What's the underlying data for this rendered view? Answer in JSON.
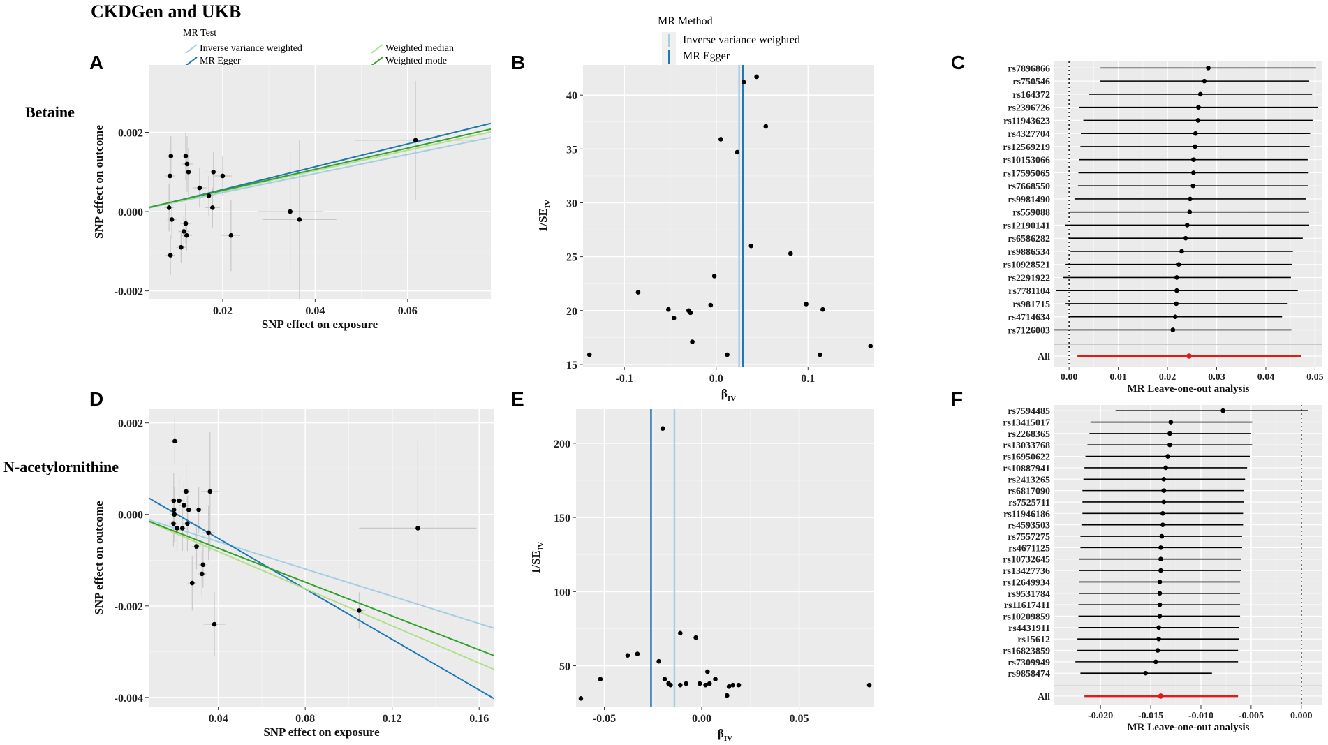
{
  "figure": {
    "title": "CKDGen and UKB",
    "row_labels": [
      "Betaine",
      "N-acetylornithine"
    ],
    "panel_letters": [
      "A",
      "B",
      "C",
      "D",
      "E",
      "F"
    ]
  },
  "legend_a": {
    "title": "MR Test",
    "items": [
      {
        "label": "Inverse variance weighted",
        "color": "#a6cee3"
      },
      {
        "label": "MR Egger",
        "color": "#1f78b4"
      },
      {
        "label": "Weighted median",
        "color": "#b2df8a"
      },
      {
        "label": "Weighted mode",
        "color": "#33a02c"
      }
    ]
  },
  "legend_b": {
    "title": "MR Method",
    "items": [
      {
        "label": "Inverse variance weighted",
        "color": "#a6cee3"
      },
      {
        "label": "MR Egger",
        "color": "#1f78b4"
      }
    ]
  },
  "chart_data": [
    {
      "id": "A",
      "type": "scatter",
      "xlabel": "SNP effect on exposure",
      "ylabel": "SNP effect on outcome",
      "xlim": [
        0.004,
        0.078
      ],
      "ylim": [
        -0.0022,
        0.0037
      ],
      "xticks": [
        0.02,
        0.04,
        0.06
      ],
      "xtick_labels": [
        "0.02",
        "0.04",
        "0.06"
      ],
      "yticks": [
        -0.002,
        0.0,
        0.002
      ],
      "ytick_labels": [
        "-0.002",
        "0.000",
        "0.002"
      ],
      "points": [
        {
          "x": 0.0086,
          "y": 0.0009,
          "sx": 0.001,
          "sy": 0.0007
        },
        {
          "x": 0.0088,
          "y": 0.0014,
          "sx": 0.001,
          "sy": 0.0005
        },
        {
          "x": 0.0084,
          "y": 0.0001,
          "sx": 0.001,
          "sy": 0.0006
        },
        {
          "x": 0.009,
          "y": -0.0002,
          "sx": 0.001,
          "sy": 0.0005
        },
        {
          "x": 0.0087,
          "y": -0.0011,
          "sx": 0.001,
          "sy": 0.0005
        },
        {
          "x": 0.011,
          "y": -0.0009,
          "sx": 0.001,
          "sy": 0.0004
        },
        {
          "x": 0.012,
          "y": 0.0014,
          "sx": 0.0012,
          "sy": 0.0006
        },
        {
          "x": 0.0123,
          "y": 0.0012,
          "sx": 0.0012,
          "sy": 0.0007
        },
        {
          "x": 0.0126,
          "y": 0.001,
          "sx": 0.0012,
          "sy": 0.0006
        },
        {
          "x": 0.012,
          "y": -0.0003,
          "sx": 0.0012,
          "sy": 0.0005
        },
        {
          "x": 0.0116,
          "y": -0.0005,
          "sx": 0.0012,
          "sy": 0.0004
        },
        {
          "x": 0.0122,
          "y": -0.0006,
          "sx": 0.0012,
          "sy": 0.0004
        },
        {
          "x": 0.015,
          "y": 0.0006,
          "sx": 0.0015,
          "sy": 0.0005
        },
        {
          "x": 0.017,
          "y": 0.0004,
          "sx": 0.0015,
          "sy": 0.0005
        },
        {
          "x": 0.018,
          "y": 0.001,
          "sx": 0.0018,
          "sy": 0.0005
        },
        {
          "x": 0.0178,
          "y": 0.0001,
          "sx": 0.0016,
          "sy": 0.0005
        },
        {
          "x": 0.02,
          "y": 0.0009,
          "sx": 0.002,
          "sy": 0.0005
        },
        {
          "x": 0.0218,
          "y": -0.0006,
          "sx": 0.002,
          "sy": 0.0009
        },
        {
          "x": 0.0346,
          "y": 0.0,
          "sx": 0.007,
          "sy": 0.0015
        },
        {
          "x": 0.0366,
          "y": -0.0002,
          "sx": 0.008,
          "sy": 0.002
        },
        {
          "x": 0.0617,
          "y": 0.0018,
          "sx": 0.013,
          "sy": 0.0015
        }
      ],
      "lines": [
        {
          "method": "Inverse variance weighted",
          "slope": 0.024,
          "intercept": 0.0
        },
        {
          "method": "MR Egger",
          "slope": 0.0288,
          "intercept": -2e-05
        },
        {
          "method": "Weighted median",
          "slope": 0.0258,
          "intercept": 0.0
        },
        {
          "method": "Weighted mode",
          "slope": 0.0267,
          "intercept": 0.0
        }
      ]
    },
    {
      "id": "B",
      "type": "scatter",
      "xlabel": "β",
      "xlabel_sub": "IV",
      "ylabel": "1/SE",
      "ylabel_sub": "IV",
      "xlim": [
        -0.145,
        0.172
      ],
      "ylim": [
        14.8,
        42.8
      ],
      "xticks": [
        -0.1,
        0.0,
        0.1
      ],
      "xtick_labels": [
        "-0.1",
        "0.0",
        "0.1"
      ],
      "yticks": [
        15,
        20,
        25,
        30,
        35,
        40
      ],
      "ytick_labels": [
        "15",
        "20",
        "25",
        "30",
        "35",
        "40"
      ],
      "points": [
        {
          "x": -0.138,
          "y": 15.9
        },
        {
          "x": -0.085,
          "y": 21.7
        },
        {
          "x": -0.052,
          "y": 20.1
        },
        {
          "x": -0.046,
          "y": 19.3
        },
        {
          "x": -0.03,
          "y": 20.0
        },
        {
          "x": -0.028,
          "y": 19.8
        },
        {
          "x": -0.026,
          "y": 17.1
        },
        {
          "x": -0.006,
          "y": 20.5
        },
        {
          "x": -0.002,
          "y": 23.2
        },
        {
          "x": 0.005,
          "y": 35.9
        },
        {
          "x": 0.012,
          "y": 15.9
        },
        {
          "x": 0.023,
          "y": 34.7
        },
        {
          "x": 0.03,
          "y": 41.2
        },
        {
          "x": 0.038,
          "y": 26.0
        },
        {
          "x": 0.044,
          "y": 41.7
        },
        {
          "x": 0.054,
          "y": 37.1
        },
        {
          "x": 0.081,
          "y": 25.3
        },
        {
          "x": 0.098,
          "y": 20.6
        },
        {
          "x": 0.113,
          "y": 15.9
        },
        {
          "x": 0.116,
          "y": 20.1
        },
        {
          "x": 0.168,
          "y": 16.7
        }
      ],
      "vlines": [
        {
          "method": "Inverse variance weighted",
          "x": 0.025
        },
        {
          "method": "MR Egger",
          "x": 0.029
        }
      ]
    },
    {
      "id": "C",
      "type": "forest",
      "xlabel": "MR Leave-one-out analysis",
      "xlim": [
        -0.003,
        0.0515
      ],
      "xticks": [
        0.0,
        0.01,
        0.02,
        0.03,
        0.04,
        0.05
      ],
      "xtick_labels": [
        "0.00",
        "0.01",
        "0.02",
        "0.03",
        "0.04",
        "0.05"
      ],
      "ref_line": 0.0,
      "rows": [
        {
          "snp": "rs7896866",
          "est": 0.0283,
          "lo": 0.0064,
          "hi": 0.0502
        },
        {
          "snp": "rs750546",
          "est": 0.0275,
          "lo": 0.0063,
          "hi": 0.0488
        },
        {
          "snp": "rs164372",
          "est": 0.0267,
          "lo": 0.004,
          "hi": 0.0494
        },
        {
          "snp": "rs2396726",
          "est": 0.0263,
          "lo": 0.002,
          "hi": 0.0506
        },
        {
          "snp": "rs11943623",
          "est": 0.0262,
          "lo": 0.0029,
          "hi": 0.0495
        },
        {
          "snp": "rs4327704",
          "est": 0.0257,
          "lo": 0.0024,
          "hi": 0.049
        },
        {
          "snp": "rs12569219",
          "est": 0.0256,
          "lo": 0.0023,
          "hi": 0.0489
        },
        {
          "snp": "rs10153066",
          "est": 0.0253,
          "lo": 0.0021,
          "hi": 0.0485
        },
        {
          "snp": "rs17595065",
          "est": 0.0253,
          "lo": 0.0019,
          "hi": 0.0487
        },
        {
          "snp": "rs7668550",
          "est": 0.0252,
          "lo": 0.0018,
          "hi": 0.0486
        },
        {
          "snp": "rs9981490",
          "est": 0.0246,
          "lo": 0.0011,
          "hi": 0.0481
        },
        {
          "snp": "rs559088",
          "est": 0.0245,
          "lo": 0.0002,
          "hi": 0.0488
        },
        {
          "snp": "rs12190141",
          "est": 0.024,
          "lo": -0.0008,
          "hi": 0.0488
        },
        {
          "snp": "rs6586282",
          "est": 0.0237,
          "lo": -0.0001,
          "hi": 0.0475
        },
        {
          "snp": "rs9886534",
          "est": 0.0229,
          "lo": 0.0003,
          "hi": 0.0455
        },
        {
          "snp": "rs10928521",
          "est": 0.0223,
          "lo": -0.0007,
          "hi": 0.0453
        },
        {
          "snp": "rs2291922",
          "est": 0.0219,
          "lo": -0.0013,
          "hi": 0.0451
        },
        {
          "snp": "rs7781104",
          "est": 0.0219,
          "lo": -0.0027,
          "hi": 0.0465
        },
        {
          "snp": "rs981715",
          "est": 0.0218,
          "lo": -0.0007,
          "hi": 0.0443
        },
        {
          "snp": "rs4714634",
          "est": 0.0216,
          "lo": -0.0001,
          "hi": 0.0433
        },
        {
          "snp": "rs7126003",
          "est": 0.0211,
          "lo": -0.003,
          "hi": 0.0452
        }
      ],
      "all": {
        "snp": "All",
        "est": 0.0244,
        "lo": 0.0017,
        "hi": 0.0471
      }
    },
    {
      "id": "D",
      "type": "scatter",
      "xlabel": "SNP effect on exposure",
      "ylabel": "SNP effect on outcome",
      "xlim": [
        0.008,
        0.167
      ],
      "ylim": [
        -0.0042,
        0.0023
      ],
      "xticks": [
        0.04,
        0.08,
        0.12,
        0.16
      ],
      "xtick_labels": [
        "0.04",
        "0.08",
        "0.12",
        "0.16"
      ],
      "yticks": [
        -0.004,
        -0.002,
        0.0,
        0.002
      ],
      "ytick_labels": [
        "-0.004",
        "-0.002",
        "0.000",
        "0.002"
      ],
      "points": [
        {
          "x": 0.02,
          "y": 0.0016,
          "sx": 0.002,
          "sy": 0.0005
        },
        {
          "x": 0.0195,
          "y": 0.0003,
          "sx": 0.002,
          "sy": 0.0006
        },
        {
          "x": 0.0196,
          "y": 0.0001,
          "sx": 0.002,
          "sy": 0.0005
        },
        {
          "x": 0.0198,
          "y": -0.0,
          "sx": 0.002,
          "sy": 0.0006
        },
        {
          "x": 0.0194,
          "y": -0.0002,
          "sx": 0.002,
          "sy": 0.0005
        },
        {
          "x": 0.021,
          "y": -0.0003,
          "sx": 0.002,
          "sy": 0.0005
        },
        {
          "x": 0.022,
          "y": 0.0003,
          "sx": 0.002,
          "sy": 0.0005
        },
        {
          "x": 0.0235,
          "y": -0.0003,
          "sx": 0.002,
          "sy": 0.0005
        },
        {
          "x": 0.0242,
          "y": 0.0002,
          "sx": 0.002,
          "sy": 0.0005
        },
        {
          "x": 0.0252,
          "y": 0.0005,
          "sx": 0.002,
          "sy": 0.0006
        },
        {
          "x": 0.0258,
          "y": -0.0002,
          "sx": 0.002,
          "sy": 0.0006
        },
        {
          "x": 0.0264,
          "y": 0.0001,
          "sx": 0.002,
          "sy": 0.0005
        },
        {
          "x": 0.028,
          "y": -0.0015,
          "sx": 0.002,
          "sy": 0.0006
        },
        {
          "x": 0.03,
          "y": -0.0007,
          "sx": 0.002,
          "sy": 0.0005
        },
        {
          "x": 0.031,
          "y": 0.0001,
          "sx": 0.002,
          "sy": 0.0005
        },
        {
          "x": 0.033,
          "y": -0.0011,
          "sx": 0.002,
          "sy": 0.0005
        },
        {
          "x": 0.0325,
          "y": -0.0013,
          "sx": 0.002,
          "sy": 0.0005
        },
        {
          "x": 0.0355,
          "y": -0.0004,
          "sx": 0.003,
          "sy": 0.0006
        },
        {
          "x": 0.0362,
          "y": 0.0005,
          "sx": 0.004,
          "sy": 0.0013
        },
        {
          "x": 0.0382,
          "y": -0.0024,
          "sx": 0.005,
          "sy": 0.0007
        },
        {
          "x": 0.1048,
          "y": -0.0021,
          "sx": 0.003,
          "sy": 0.0004
        },
        {
          "x": 0.1318,
          "y": -0.0003,
          "sx": 0.027,
          "sy": 0.0019
        }
      ],
      "lines": [
        {
          "method": "Inverse variance weighted",
          "slope": -0.0149,
          "intercept": 0.0
        },
        {
          "method": "MR Egger",
          "slope": -0.0276,
          "intercept": 0.00058
        },
        {
          "method": "Weighted median",
          "slope": -0.0203,
          "intercept": 0.0
        },
        {
          "method": "Weighted mode",
          "slope": -0.0185,
          "intercept": 0.0
        }
      ]
    },
    {
      "id": "E",
      "type": "scatter",
      "xlabel": "β",
      "xlabel_sub": "IV",
      "ylabel": "1/SE",
      "ylabel_sub": "IV",
      "xlim": [
        -0.0645,
        0.0885
      ],
      "ylim": [
        22.5,
        223
      ],
      "xticks": [
        -0.05,
        0.0,
        0.05
      ],
      "xtick_labels": [
        "-0.05",
        "0.00",
        "0.05"
      ],
      "yticks": [
        50,
        100,
        150,
        200
      ],
      "ytick_labels": [
        "50",
        "100",
        "150",
        "200"
      ],
      "points": [
        {
          "x": -0.062,
          "y": 28
        },
        {
          "x": -0.052,
          "y": 41
        },
        {
          "x": -0.038,
          "y": 57
        },
        {
          "x": -0.033,
          "y": 58
        },
        {
          "x": -0.022,
          "y": 53
        },
        {
          "x": -0.02,
          "y": 210
        },
        {
          "x": -0.019,
          "y": 41
        },
        {
          "x": -0.017,
          "y": 38
        },
        {
          "x": -0.016,
          "y": 37
        },
        {
          "x": -0.011,
          "y": 72
        },
        {
          "x": -0.011,
          "y": 37
        },
        {
          "x": -0.008,
          "y": 38
        },
        {
          "x": -0.003,
          "y": 69
        },
        {
          "x": -0.001,
          "y": 38
        },
        {
          "x": 0.002,
          "y": 37
        },
        {
          "x": 0.003,
          "y": 46
        },
        {
          "x": 0.004,
          "y": 38
        },
        {
          "x": 0.007,
          "y": 41
        },
        {
          "x": 0.013,
          "y": 30
        },
        {
          "x": 0.014,
          "y": 36
        },
        {
          "x": 0.016,
          "y": 37
        },
        {
          "x": 0.019,
          "y": 37
        },
        {
          "x": 0.086,
          "y": 37
        }
      ],
      "vlines": [
        {
          "method": "Inverse variance weighted",
          "x": -0.014
        },
        {
          "method": "MR Egger",
          "x": -0.026
        }
      ]
    },
    {
      "id": "F",
      "type": "forest",
      "xlabel": "MR Leave-one-out analysis",
      "xlim": [
        -0.0246,
        0.0021
      ],
      "xticks": [
        -0.02,
        -0.015,
        -0.01,
        -0.005,
        0.0
      ],
      "xtick_labels": [
        "-0.020",
        "-0.015",
        "-0.010",
        "-0.005",
        "0.000"
      ],
      "ref_line": 0.0,
      "rows": [
        {
          "snp": "rs7594485",
          "est": -0.0078,
          "lo": -0.0185,
          "hi": 0.0007
        },
        {
          "snp": "rs13415017",
          "est": -0.013,
          "lo": -0.021,
          "hi": -0.0049
        },
        {
          "snp": "rs2268365",
          "est": -0.0131,
          "lo": -0.0211,
          "hi": -0.005
        },
        {
          "snp": "rs13033768",
          "est": -0.0131,
          "lo": -0.0213,
          "hi": -0.0049
        },
        {
          "snp": "rs16950622",
          "est": -0.0133,
          "lo": -0.0215,
          "hi": -0.0051
        },
        {
          "snp": "rs10887941",
          "est": -0.0135,
          "lo": -0.0216,
          "hi": -0.0054
        },
        {
          "snp": "rs2413265",
          "est": -0.0137,
          "lo": -0.0217,
          "hi": -0.0056
        },
        {
          "snp": "rs6817090",
          "est": -0.0137,
          "lo": -0.0218,
          "hi": -0.0057
        },
        {
          "snp": "rs7525711",
          "est": -0.0137,
          "lo": -0.0218,
          "hi": -0.0057
        },
        {
          "snp": "rs11946186",
          "est": -0.0138,
          "lo": -0.0218,
          "hi": -0.0058
        },
        {
          "snp": "rs4593503",
          "est": -0.0138,
          "lo": -0.0219,
          "hi": -0.0058
        },
        {
          "snp": "rs7557275",
          "est": -0.0139,
          "lo": -0.022,
          "hi": -0.0059
        },
        {
          "snp": "rs4671125",
          "est": -0.014,
          "lo": -0.022,
          "hi": -0.0059
        },
        {
          "snp": "rs10732645",
          "est": -0.014,
          "lo": -0.0221,
          "hi": -0.006
        },
        {
          "snp": "rs13427736",
          "est": -0.014,
          "lo": -0.0221,
          "hi": -0.006
        },
        {
          "snp": "rs12649934",
          "est": -0.0141,
          "lo": -0.0221,
          "hi": -0.0061
        },
        {
          "snp": "rs9531784",
          "est": -0.0141,
          "lo": -0.0221,
          "hi": -0.0061
        },
        {
          "snp": "rs11617411",
          "est": -0.0141,
          "lo": -0.0222,
          "hi": -0.0061
        },
        {
          "snp": "rs10209859",
          "est": -0.0141,
          "lo": -0.0222,
          "hi": -0.0061
        },
        {
          "snp": "rs4431911",
          "est": -0.0142,
          "lo": -0.0222,
          "hi": -0.0062
        },
        {
          "snp": "rs15612",
          "est": -0.0142,
          "lo": -0.0223,
          "hi": -0.0062
        },
        {
          "snp": "rs16823859",
          "est": -0.0143,
          "lo": -0.0223,
          "hi": -0.0063
        },
        {
          "snp": "rs7309949",
          "est": -0.0145,
          "lo": -0.0225,
          "hi": -0.0063
        },
        {
          "snp": "rs9858474",
          "est": -0.0155,
          "lo": -0.022,
          "hi": -0.0089
        }
      ],
      "all": {
        "snp": "All",
        "est": -0.014,
        "lo": -0.0216,
        "hi": -0.0063
      }
    }
  ]
}
